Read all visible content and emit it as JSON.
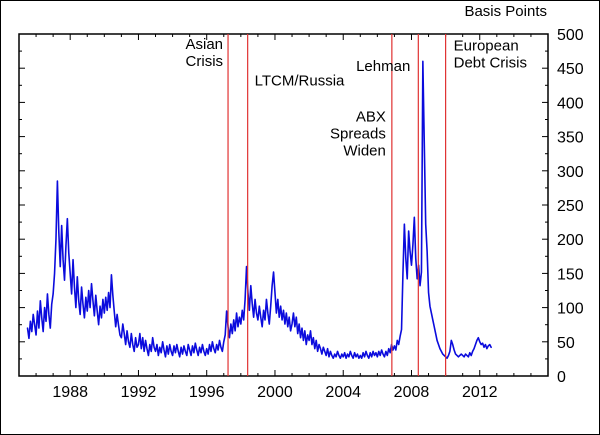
{
  "chart_data": {
    "type": "line",
    "title": "",
    "axis_label": "Basis Points",
    "xlabel": "",
    "ylabel": "Basis Points",
    "x_range": [
      1985,
      2016
    ],
    "y_range": [
      0,
      500
    ],
    "x_ticks": [
      1988,
      1992,
      1996,
      2000,
      2004,
      2008,
      2012
    ],
    "y_tick_step": 50,
    "grid": false,
    "legend": "none",
    "line_color": "#0b0bdd",
    "event_color": "#e03232",
    "axis_color": "#000000",
    "series": [
      {
        "name": "spread-basis-points",
        "color": "#0b0bdd",
        "x_start": 1985.5,
        "x_step": 0.0833333,
        "values": [
          70,
          55,
          80,
          65,
          90,
          75,
          60,
          95,
          70,
          110,
          85,
          65,
          100,
          80,
          120,
          90,
          70,
          105,
          120,
          150,
          200,
          285,
          210,
          160,
          220,
          170,
          140,
          190,
          230,
          180,
          150,
          120,
          170,
          130,
          100,
          145,
          110,
          90,
          130,
          105,
          85,
          115,
          95,
          125,
          100,
          135,
          110,
          88,
          118,
          95,
          75,
          102,
          85,
          112,
          92,
          115,
          96,
          122,
          100,
          148,
          118,
          94,
          72,
          90,
          74,
          60,
          56,
          76,
          62,
          46,
          66,
          50,
          42,
          62,
          46,
          36,
          56,
          42,
          46,
          62,
          40,
          56,
          36,
          52,
          40,
          30,
          46,
          36,
          56,
          42,
          36,
          46,
          30,
          42,
          34,
          50,
          38,
          28,
          44,
          32,
          46,
          36,
          30,
          44,
          34,
          46,
          36,
          28,
          42,
          32,
          44,
          36,
          30,
          46,
          38,
          30,
          44,
          34,
          48,
          38,
          30,
          42,
          34,
          46,
          36,
          30,
          40,
          32,
          46,
          36,
          50,
          40,
          34,
          46,
          38,
          52,
          42,
          36,
          50,
          60,
          95,
          72,
          56,
          76,
          62,
          82,
          66,
          92,
          72,
          86,
          76,
          96,
          82,
          112,
          160,
          122,
          96,
          132,
          106,
          86,
          112,
          92,
          82,
          102,
          86,
          72,
          96,
          82,
          112,
          92,
          76,
          102,
          132,
          152,
          122,
          92,
          112,
          86,
          102,
          82,
          96,
          76,
          92,
          72,
          86,
          66,
          76,
          92,
          72,
          86,
          62,
          76,
          56,
          70,
          52,
          66,
          46,
          60,
          52,
          66,
          46,
          56,
          40,
          52,
          36,
          46,
          40,
          32,
          42,
          36,
          30,
          40,
          28,
          36,
          30,
          26,
          32,
          28,
          36,
          30,
          26,
          32,
          28,
          34,
          26,
          32,
          28,
          36,
          30,
          26,
          34,
          28,
          32,
          26,
          30,
          26,
          34,
          28,
          36,
          30,
          26,
          34,
          28,
          36,
          30,
          34,
          28,
          36,
          30,
          38,
          32,
          28,
          36,
          30,
          40,
          34,
          46,
          38,
          44,
          38,
          52,
          46,
          58,
          68,
          150,
          222,
          172,
          142,
          212,
          182,
          162,
          192,
          232,
          172,
          142,
          162,
          132,
          152,
          460,
          340,
          222,
          182,
          122,
          102,
          92,
          82,
          72,
          62,
          52,
          46,
          40,
          36,
          32,
          30,
          28,
          26,
          30,
          36,
          52,
          46,
          38,
          32,
          30,
          28,
          30,
          32,
          30,
          28,
          32,
          30,
          28,
          34,
          30,
          36,
          40,
          46,
          52,
          56,
          50,
          46,
          48,
          42,
          46,
          40,
          44,
          46,
          42
        ]
      }
    ],
    "events": [
      {
        "name": "asian-crisis",
        "label_lines": [
          "Asian",
          "Crisis"
        ],
        "year": 1997.25,
        "anchor": "end",
        "label_y": 478,
        "dx": -5
      },
      {
        "name": "ltcm-russia",
        "label_lines": [
          "LTCM/Russia"
        ],
        "year": 1998.4,
        "anchor": "start",
        "label_y": 425,
        "dx": 7
      },
      {
        "name": "abx-spreads-widen",
        "label_lines": [
          "ABX",
          "Spreads",
          "Widen"
        ],
        "year": 2006.85,
        "anchor": "end",
        "label_y": 372,
        "dx": -6
      },
      {
        "name": "lehman",
        "label_lines": [
          "Lehman"
        ],
        "year": 2008.4,
        "anchor": "end",
        "label_y": 446,
        "dx": -8
      },
      {
        "name": "european-debt-crisis",
        "label_lines": [
          "European",
          "Debt Crisis"
        ],
        "year": 2010.0,
        "anchor": "start",
        "label_y": 476,
        "dx": 8
      }
    ]
  }
}
